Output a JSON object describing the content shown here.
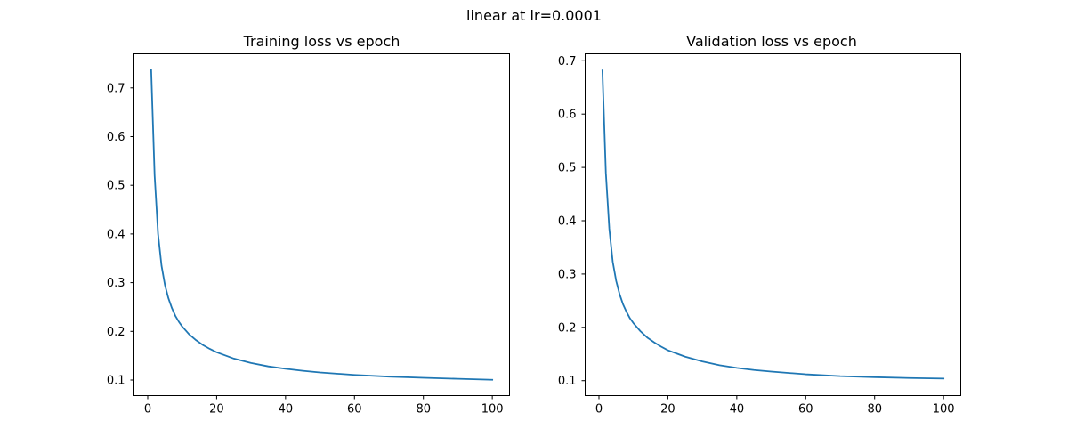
{
  "figure": {
    "suptitle": "linear at lr=0.0001"
  },
  "chart_data": [
    {
      "type": "line",
      "title": "Training loss vs epoch",
      "xlabel": "",
      "ylabel": "",
      "xlim": [
        -4,
        105
      ],
      "ylim": [
        0.068,
        0.77
      ],
      "xticks": [
        0,
        20,
        40,
        60,
        80,
        100
      ],
      "yticks": [
        0.1,
        0.2,
        0.3,
        0.4,
        0.5,
        0.6,
        0.7
      ],
      "xtick_labels": [
        "0",
        "20",
        "40",
        "60",
        "80",
        "100"
      ],
      "ytick_labels": [
        "0.1",
        "0.2",
        "0.3",
        "0.4",
        "0.5",
        "0.6",
        "0.7"
      ],
      "grid": false,
      "color": "#1f77b4",
      "series": [
        {
          "x": [
            1,
            2,
            3,
            4,
            5,
            6,
            7,
            8,
            9,
            10,
            12,
            14,
            16,
            18,
            20,
            25,
            30,
            35,
            40,
            45,
            50,
            60,
            70,
            80,
            90,
            100
          ],
          "values": [
            0.737,
            0.52,
            0.4,
            0.335,
            0.295,
            0.268,
            0.248,
            0.232,
            0.22,
            0.21,
            0.194,
            0.182,
            0.172,
            0.164,
            0.157,
            0.144,
            0.135,
            0.128,
            0.123,
            0.119,
            0.1155,
            0.1105,
            0.107,
            0.1045,
            0.1025,
            0.1005
          ]
        }
      ]
    },
    {
      "type": "line",
      "title": "Validation loss vs epoch",
      "xlabel": "",
      "ylabel": "",
      "xlim": [
        -4,
        105
      ],
      "ylim": [
        0.072,
        0.713
      ],
      "xticks": [
        0,
        20,
        40,
        60,
        80,
        100
      ],
      "yticks": [
        0.1,
        0.2,
        0.3,
        0.4,
        0.5,
        0.6,
        0.7
      ],
      "xtick_labels": [
        "0",
        "20",
        "40",
        "60",
        "80",
        "100"
      ],
      "ytick_labels": [
        "0.1",
        "0.2",
        "0.3",
        "0.4",
        "0.5",
        "0.6",
        "0.7"
      ],
      "grid": false,
      "color": "#1f77b4",
      "series": [
        {
          "x": [
            1,
            2,
            3,
            4,
            5,
            6,
            7,
            8,
            9,
            10,
            12,
            14,
            16,
            18,
            20,
            25,
            30,
            35,
            40,
            45,
            50,
            60,
            70,
            80,
            90,
            100
          ],
          "values": [
            0.682,
            0.49,
            0.385,
            0.323,
            0.287,
            0.262,
            0.243,
            0.229,
            0.217,
            0.208,
            0.193,
            0.181,
            0.172,
            0.164,
            0.157,
            0.145,
            0.136,
            0.129,
            0.124,
            0.12,
            0.117,
            0.112,
            0.1085,
            0.1065,
            0.105,
            0.104
          ]
        }
      ]
    }
  ]
}
